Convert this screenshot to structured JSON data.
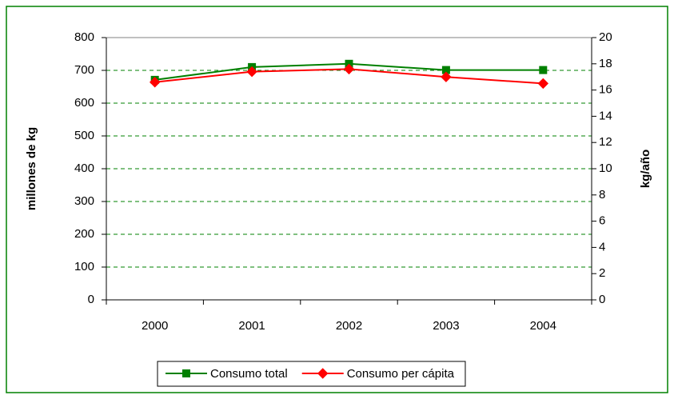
{
  "chart_data": {
    "type": "line",
    "categories": [
      "2000",
      "2001",
      "2002",
      "2003",
      "2004"
    ],
    "series": [
      {
        "name": "Consumo total",
        "color": "#008000",
        "marker": "square",
        "values": [
          671,
          710,
          720,
          701,
          701
        ]
      },
      {
        "name": "Consumo per cápita",
        "color": "#ff0000",
        "marker": "diamond",
        "axis": "y2",
        "values": [
          16.6,
          17.4,
          17.6,
          17.0,
          16.5
        ]
      }
    ],
    "ylabel": "millones de kg",
    "y2label": "kg/año",
    "ylim": [
      0,
      800
    ],
    "yticks": [
      0,
      100,
      200,
      300,
      400,
      500,
      600,
      700,
      800
    ],
    "y2lim": [
      0,
      20
    ],
    "y2ticks": [
      0,
      2,
      4,
      6,
      8,
      10,
      12,
      14,
      16,
      18,
      20
    ],
    "grid": true,
    "grid_color": "#008000",
    "legend": "bottom"
  }
}
